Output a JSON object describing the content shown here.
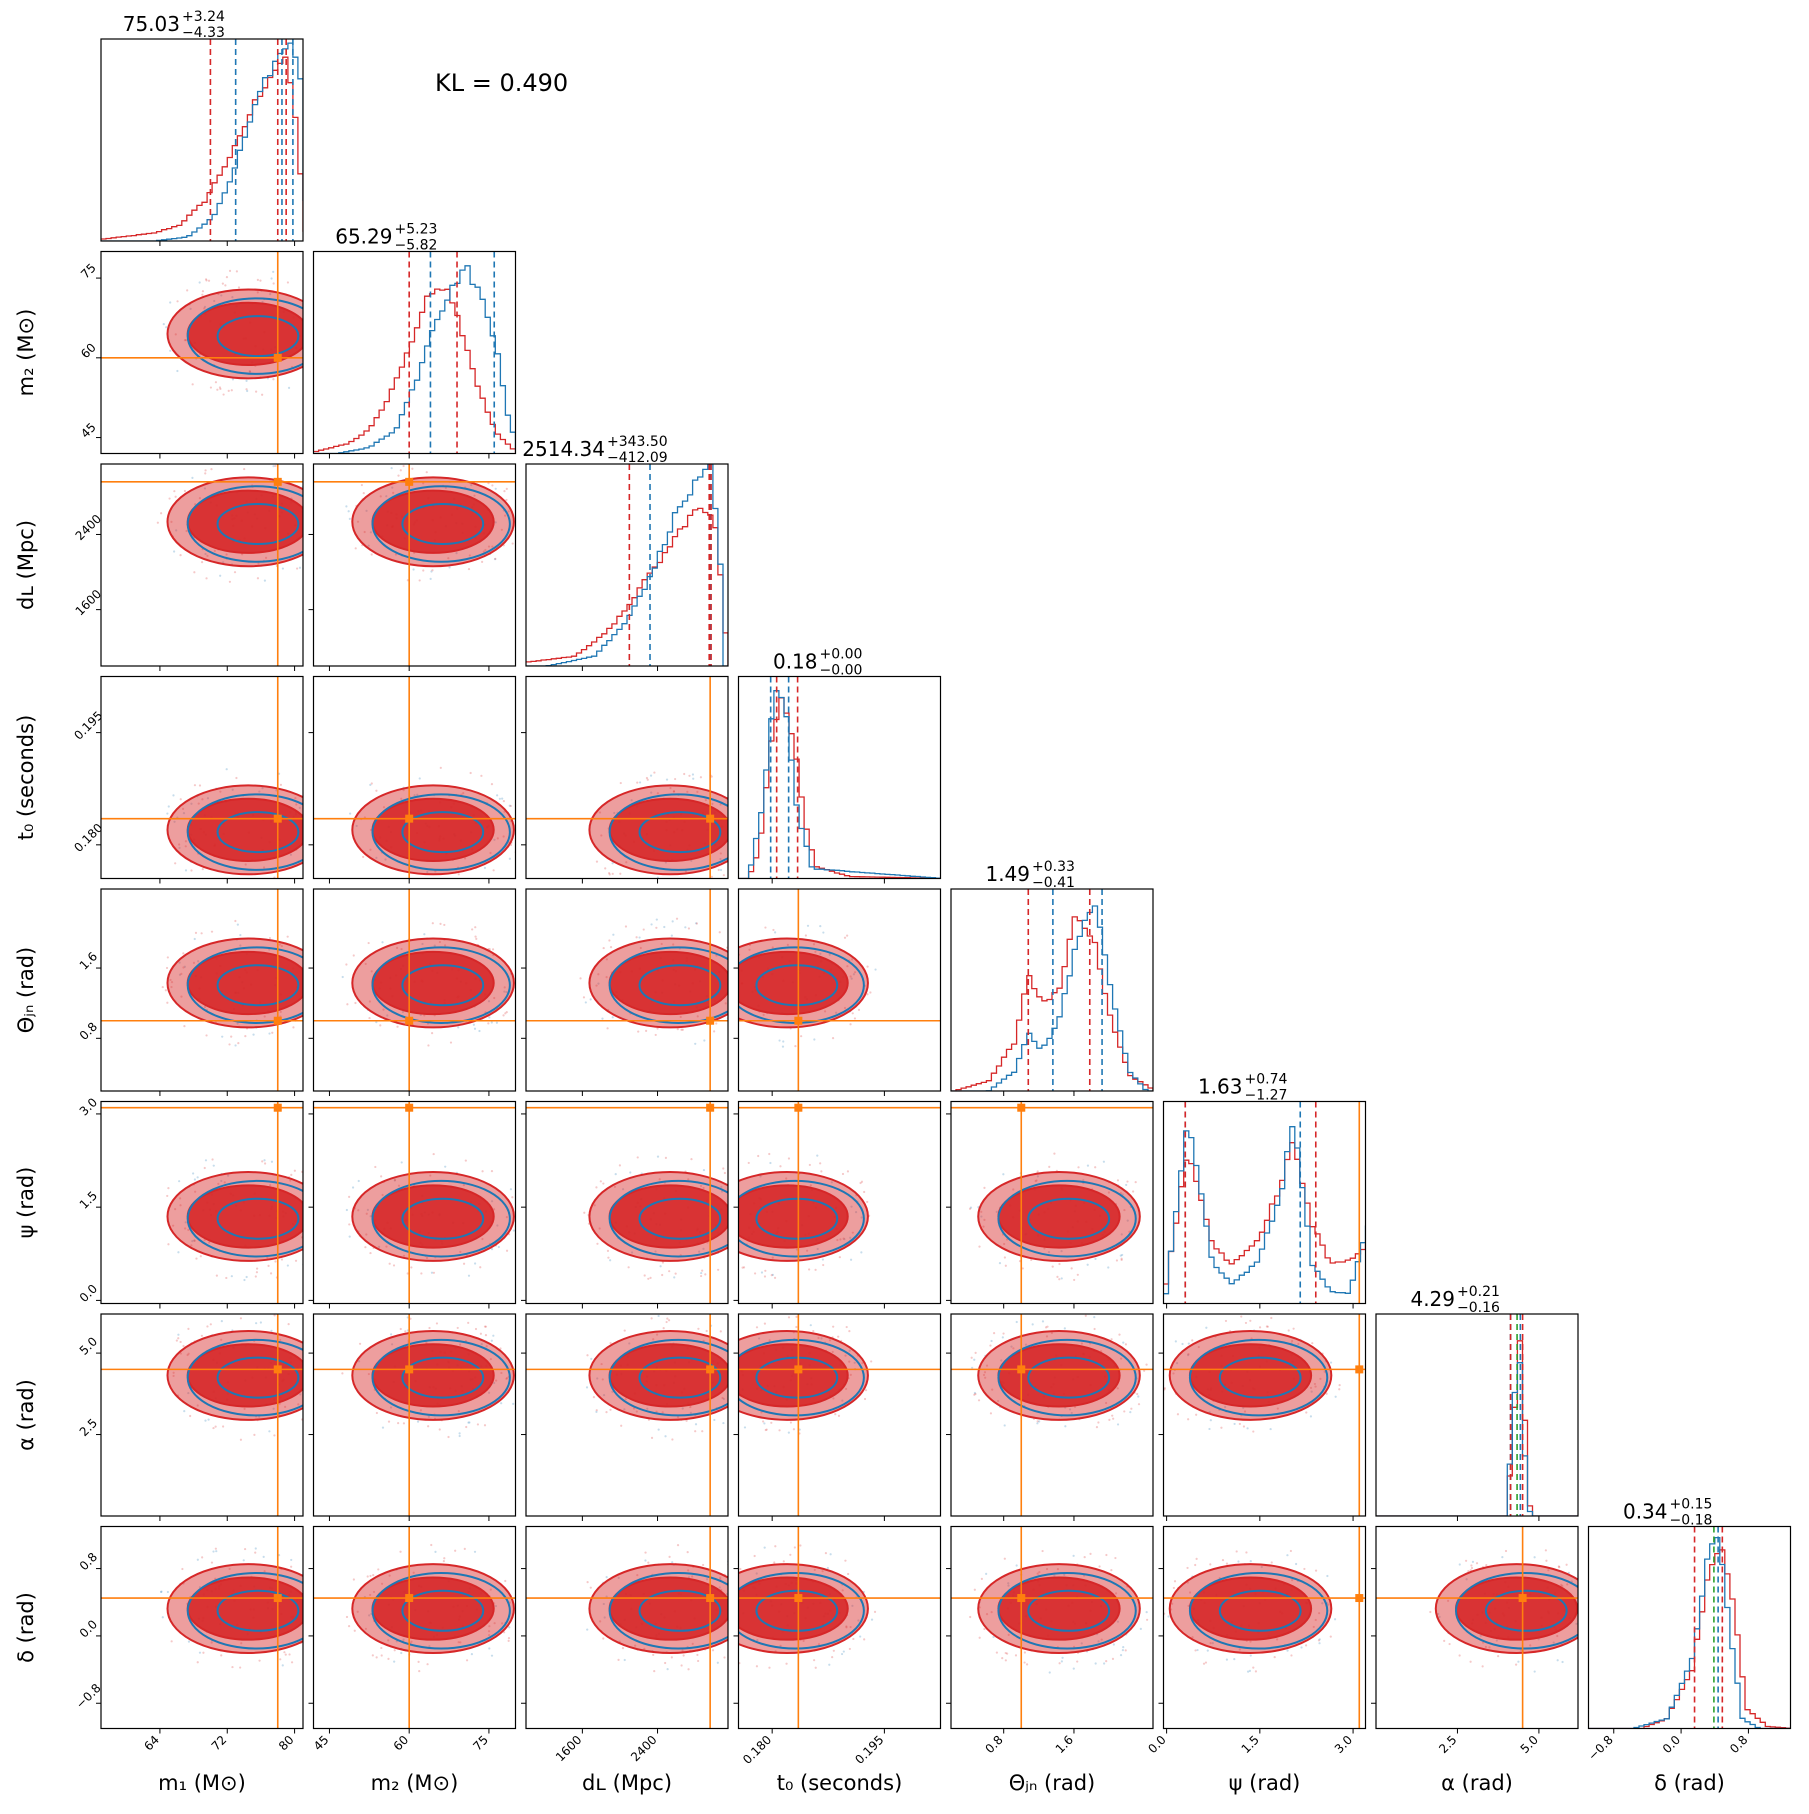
{
  "figure": {
    "kl_text": "KL = 0.490",
    "colors": {
      "posterior_a": "#d62728",
      "posterior_b": "#1f77b4",
      "truth": "#ff7f0e",
      "median_extra": "#2ca02c"
    }
  },
  "chart_data": {
    "type": "corner",
    "parameters": [
      {
        "key": "m1",
        "label": "m₁ (M⊙)",
        "range": [
          57,
          81
        ],
        "ticks": [
          64,
          72,
          80
        ],
        "tick_labels": [
          "64",
          "72",
          "80"
        ],
        "truth": 78.0,
        "title_value": "75.03",
        "title_plus": "+3.24",
        "title_minus": "−4.33"
      },
      {
        "key": "m2",
        "label": "m₂ (M⊙)",
        "range": [
          42,
          80
        ],
        "ticks": [
          45,
          60,
          75
        ],
        "tick_labels": [
          "45",
          "60",
          "75"
        ],
        "truth": 60.0,
        "title_value": "65.29",
        "title_plus": "+5.23",
        "title_minus": "−5.82"
      },
      {
        "key": "dL",
        "label": "dʟ (Mpc)",
        "range": [
          1000,
          3150
        ],
        "ticks": [
          1600,
          2400
        ],
        "tick_labels": [
          "1600",
          "2400"
        ],
        "truth": 2960,
        "title_value": "2514.34",
        "title_plus": "+343.50",
        "title_minus": "−412.09"
      },
      {
        "key": "t0",
        "label": "t₀ (seconds)",
        "range": [
          0.1755,
          0.2025
        ],
        "ticks": [
          0.18,
          0.195
        ],
        "tick_labels": [
          "0.180",
          "0.195"
        ],
        "truth": 0.1835,
        "title_value": "0.18",
        "title_plus": "+0.00",
        "title_minus": "−0.00"
      },
      {
        "key": "thetajn",
        "label": "Θⱼₙ (rad)",
        "range": [
          0.2,
          2.5
        ],
        "ticks": [
          0.8,
          1.6
        ],
        "tick_labels": [
          "0.8",
          "1.6"
        ],
        "truth": 1.0,
        "title_value": "1.49",
        "title_plus": "+0.33",
        "title_minus": "−0.41"
      },
      {
        "key": "psi",
        "label": "ψ (rad)",
        "range": [
          -0.05,
          3.2
        ],
        "ticks": [
          0.0,
          1.5,
          3.0
        ],
        "tick_labels": [
          "0.0",
          "1.5",
          "3.0"
        ],
        "truth": 3.1,
        "title_value": "1.63",
        "title_plus": "+0.74",
        "title_minus": "−1.27"
      },
      {
        "key": "alpha",
        "label": "α (rad)",
        "range": [
          0.0,
          6.2
        ],
        "ticks": [
          2.5,
          5.0
        ],
        "tick_labels": [
          "2.5",
          "5.0"
        ],
        "truth": 4.5,
        "title_value": "4.29",
        "title_plus": "+0.21",
        "title_minus": "−0.16"
      },
      {
        "key": "delta",
        "label": "δ (rad)",
        "range": [
          -1.1,
          1.3
        ],
        "ticks": [
          -0.8,
          0.0,
          0.8
        ],
        "tick_labels": [
          "−0.8",
          "0.0",
          "0.8"
        ],
        "truth": 0.45,
        "title_value": "0.34",
        "title_plus": "+0.15",
        "title_minus": "−0.18"
      }
    ],
    "quantiles": {
      "m1": {
        "a": [
          70.0,
          78.0,
          79.0
        ],
        "b": [
          73.0,
          78.5,
          79.8
        ]
      },
      "m2": {
        "a": [
          60.0,
          69.0
        ],
        "b": [
          64.0,
          76.0
        ]
      },
      "dL": {
        "a": [
          2100,
          2950,
          2970
        ],
        "b": [
          2320,
          2960
        ]
      },
      "t0": {
        "a": [
          0.1806,
          0.1834
        ],
        "b": [
          0.1798,
          0.1822
        ]
      },
      "thetajn": {
        "a": [
          1.08,
          1.78
        ],
        "b": [
          1.36,
          1.92
        ]
      },
      "psi": {
        "a": [
          0.3,
          2.4
        ],
        "b": [
          0.3,
          2.15
        ]
      },
      "alpha": {
        "a": [
          4.13,
          4.5
        ],
        "b": [
          4.13,
          4.43
        ]
      },
      "delta": {
        "a": [
          0.16,
          0.49
        ],
        "b": [
          0.44
        ]
      }
    },
    "marginals": {
      "m1": {
        "a": [
          [
            57,
            0.01
          ],
          [
            63,
            0.04
          ],
          [
            66,
            0.08
          ],
          [
            69,
            0.2
          ],
          [
            71,
            0.35
          ],
          [
            73,
            0.5
          ],
          [
            75,
            0.7
          ],
          [
            77,
            0.85
          ],
          [
            78.5,
            0.92
          ],
          [
            79.5,
            0.75
          ],
          [
            80.5,
            0.3
          ],
          [
            81,
            0.05
          ]
        ],
        "b": [
          [
            63,
            0.0
          ],
          [
            67,
            0.02
          ],
          [
            70,
            0.12
          ],
          [
            72,
            0.3
          ],
          [
            74,
            0.55
          ],
          [
            76,
            0.8
          ],
          [
            78,
            0.95
          ],
          [
            79.5,
            1.0
          ],
          [
            80.5,
            0.8
          ],
          [
            81,
            0.2
          ]
        ]
      },
      "m2": {
        "a": [
          [
            42,
            0.01
          ],
          [
            48,
            0.05
          ],
          [
            52,
            0.12
          ],
          [
            56,
            0.3
          ],
          [
            60,
            0.55
          ],
          [
            63,
            0.78
          ],
          [
            66,
            0.85
          ],
          [
            68,
            0.75
          ],
          [
            70,
            0.55
          ],
          [
            73,
            0.3
          ],
          [
            76,
            0.1
          ],
          [
            80,
            0.0
          ]
        ],
        "b": [
          [
            46,
            0.0
          ],
          [
            52,
            0.03
          ],
          [
            57,
            0.12
          ],
          [
            61,
            0.38
          ],
          [
            64,
            0.65
          ],
          [
            67,
            0.8
          ],
          [
            70,
            0.95
          ],
          [
            73,
            0.8
          ],
          [
            76,
            0.55
          ],
          [
            78,
            0.2
          ],
          [
            80,
            0.02
          ]
        ]
      },
      "dL": {
        "a": [
          [
            1000,
            0.02
          ],
          [
            1500,
            0.05
          ],
          [
            1900,
            0.2
          ],
          [
            2200,
            0.4
          ],
          [
            2500,
            0.6
          ],
          [
            2700,
            0.75
          ],
          [
            2850,
            0.8
          ],
          [
            3000,
            0.7
          ],
          [
            3100,
            0.15
          ]
        ],
        "b": [
          [
            1200,
            0.0
          ],
          [
            1700,
            0.05
          ],
          [
            2000,
            0.2
          ],
          [
            2300,
            0.45
          ],
          [
            2550,
            0.75
          ],
          [
            2750,
            0.9
          ],
          [
            2950,
            1.0
          ],
          [
            3080,
            0.3
          ]
        ]
      },
      "t0": {
        "a": [
          [
            0.1765,
            0.0
          ],
          [
            0.178,
            0.15
          ],
          [
            0.1795,
            0.7
          ],
          [
            0.181,
            0.95
          ],
          [
            0.1825,
            0.7
          ],
          [
            0.184,
            0.3
          ],
          [
            0.1855,
            0.06
          ],
          [
            0.19,
            0.01
          ],
          [
            0.2025,
            0.0
          ]
        ],
        "b": [
          [
            0.1765,
            0.0
          ],
          [
            0.1785,
            0.4
          ],
          [
            0.18,
            0.95
          ],
          [
            0.1815,
            0.85
          ],
          [
            0.183,
            0.35
          ],
          [
            0.185,
            0.05
          ],
          [
            0.2025,
            0.0
          ]
        ]
      },
      "thetajn": {
        "a": [
          [
            0.2,
            0.0
          ],
          [
            0.6,
            0.05
          ],
          [
            0.9,
            0.25
          ],
          [
            1.05,
            0.6
          ],
          [
            1.2,
            0.45
          ],
          [
            1.4,
            0.5
          ],
          [
            1.6,
            0.9
          ],
          [
            1.8,
            0.75
          ],
          [
            2.0,
            0.35
          ],
          [
            2.2,
            0.08
          ],
          [
            2.5,
            0.0
          ]
        ],
        "b": [
          [
            0.6,
            0.0
          ],
          [
            0.9,
            0.1
          ],
          [
            1.05,
            0.3
          ],
          [
            1.2,
            0.2
          ],
          [
            1.4,
            0.35
          ],
          [
            1.6,
            0.75
          ],
          [
            1.8,
            0.98
          ],
          [
            2.0,
            0.5
          ],
          [
            2.2,
            0.1
          ],
          [
            2.4,
            0.0
          ]
        ]
      },
      "psi": {
        "a": [
          [
            -0.05,
            0.1
          ],
          [
            0.3,
            0.78
          ],
          [
            0.7,
            0.3
          ],
          [
            1.0,
            0.2
          ],
          [
            1.4,
            0.3
          ],
          [
            1.8,
            0.6
          ],
          [
            2.0,
            0.82
          ],
          [
            2.3,
            0.4
          ],
          [
            2.6,
            0.2
          ],
          [
            2.9,
            0.22
          ],
          [
            3.2,
            0.3
          ]
        ],
        "b": [
          [
            -0.05,
            0.05
          ],
          [
            0.3,
            0.95
          ],
          [
            0.7,
            0.2
          ],
          [
            1.0,
            0.1
          ],
          [
            1.4,
            0.2
          ],
          [
            1.8,
            0.55
          ],
          [
            2.0,
            0.95
          ],
          [
            2.3,
            0.2
          ],
          [
            2.6,
            0.06
          ],
          [
            2.9,
            0.05
          ],
          [
            3.2,
            0.4
          ]
        ]
      },
      "alpha": {
        "a": [
          [
            3.9,
            0.0
          ],
          [
            4.15,
            0.4
          ],
          [
            4.3,
            1.0
          ],
          [
            4.45,
            0.6
          ],
          [
            4.65,
            0.05
          ],
          [
            4.8,
            0.0
          ]
        ],
        "b": [
          [
            3.9,
            0.0
          ],
          [
            4.15,
            0.5
          ],
          [
            4.28,
            1.0
          ],
          [
            4.42,
            0.5
          ],
          [
            4.6,
            0.03
          ],
          [
            4.8,
            0.0
          ]
        ]
      },
      "delta": {
        "a": [
          [
            -0.5,
            0.0
          ],
          [
            -0.2,
            0.05
          ],
          [
            0.1,
            0.3
          ],
          [
            0.3,
            0.8
          ],
          [
            0.45,
            0.95
          ],
          [
            0.6,
            0.6
          ],
          [
            0.75,
            0.1
          ],
          [
            1.0,
            0.01
          ],
          [
            1.3,
            0.0
          ]
        ],
        "b": [
          [
            -0.6,
            0.0
          ],
          [
            -0.2,
            0.05
          ],
          [
            0.1,
            0.35
          ],
          [
            0.3,
            0.9
          ],
          [
            0.42,
            1.0
          ],
          [
            0.55,
            0.5
          ],
          [
            0.7,
            0.05
          ],
          [
            0.9,
            0.0
          ]
        ]
      }
    }
  }
}
